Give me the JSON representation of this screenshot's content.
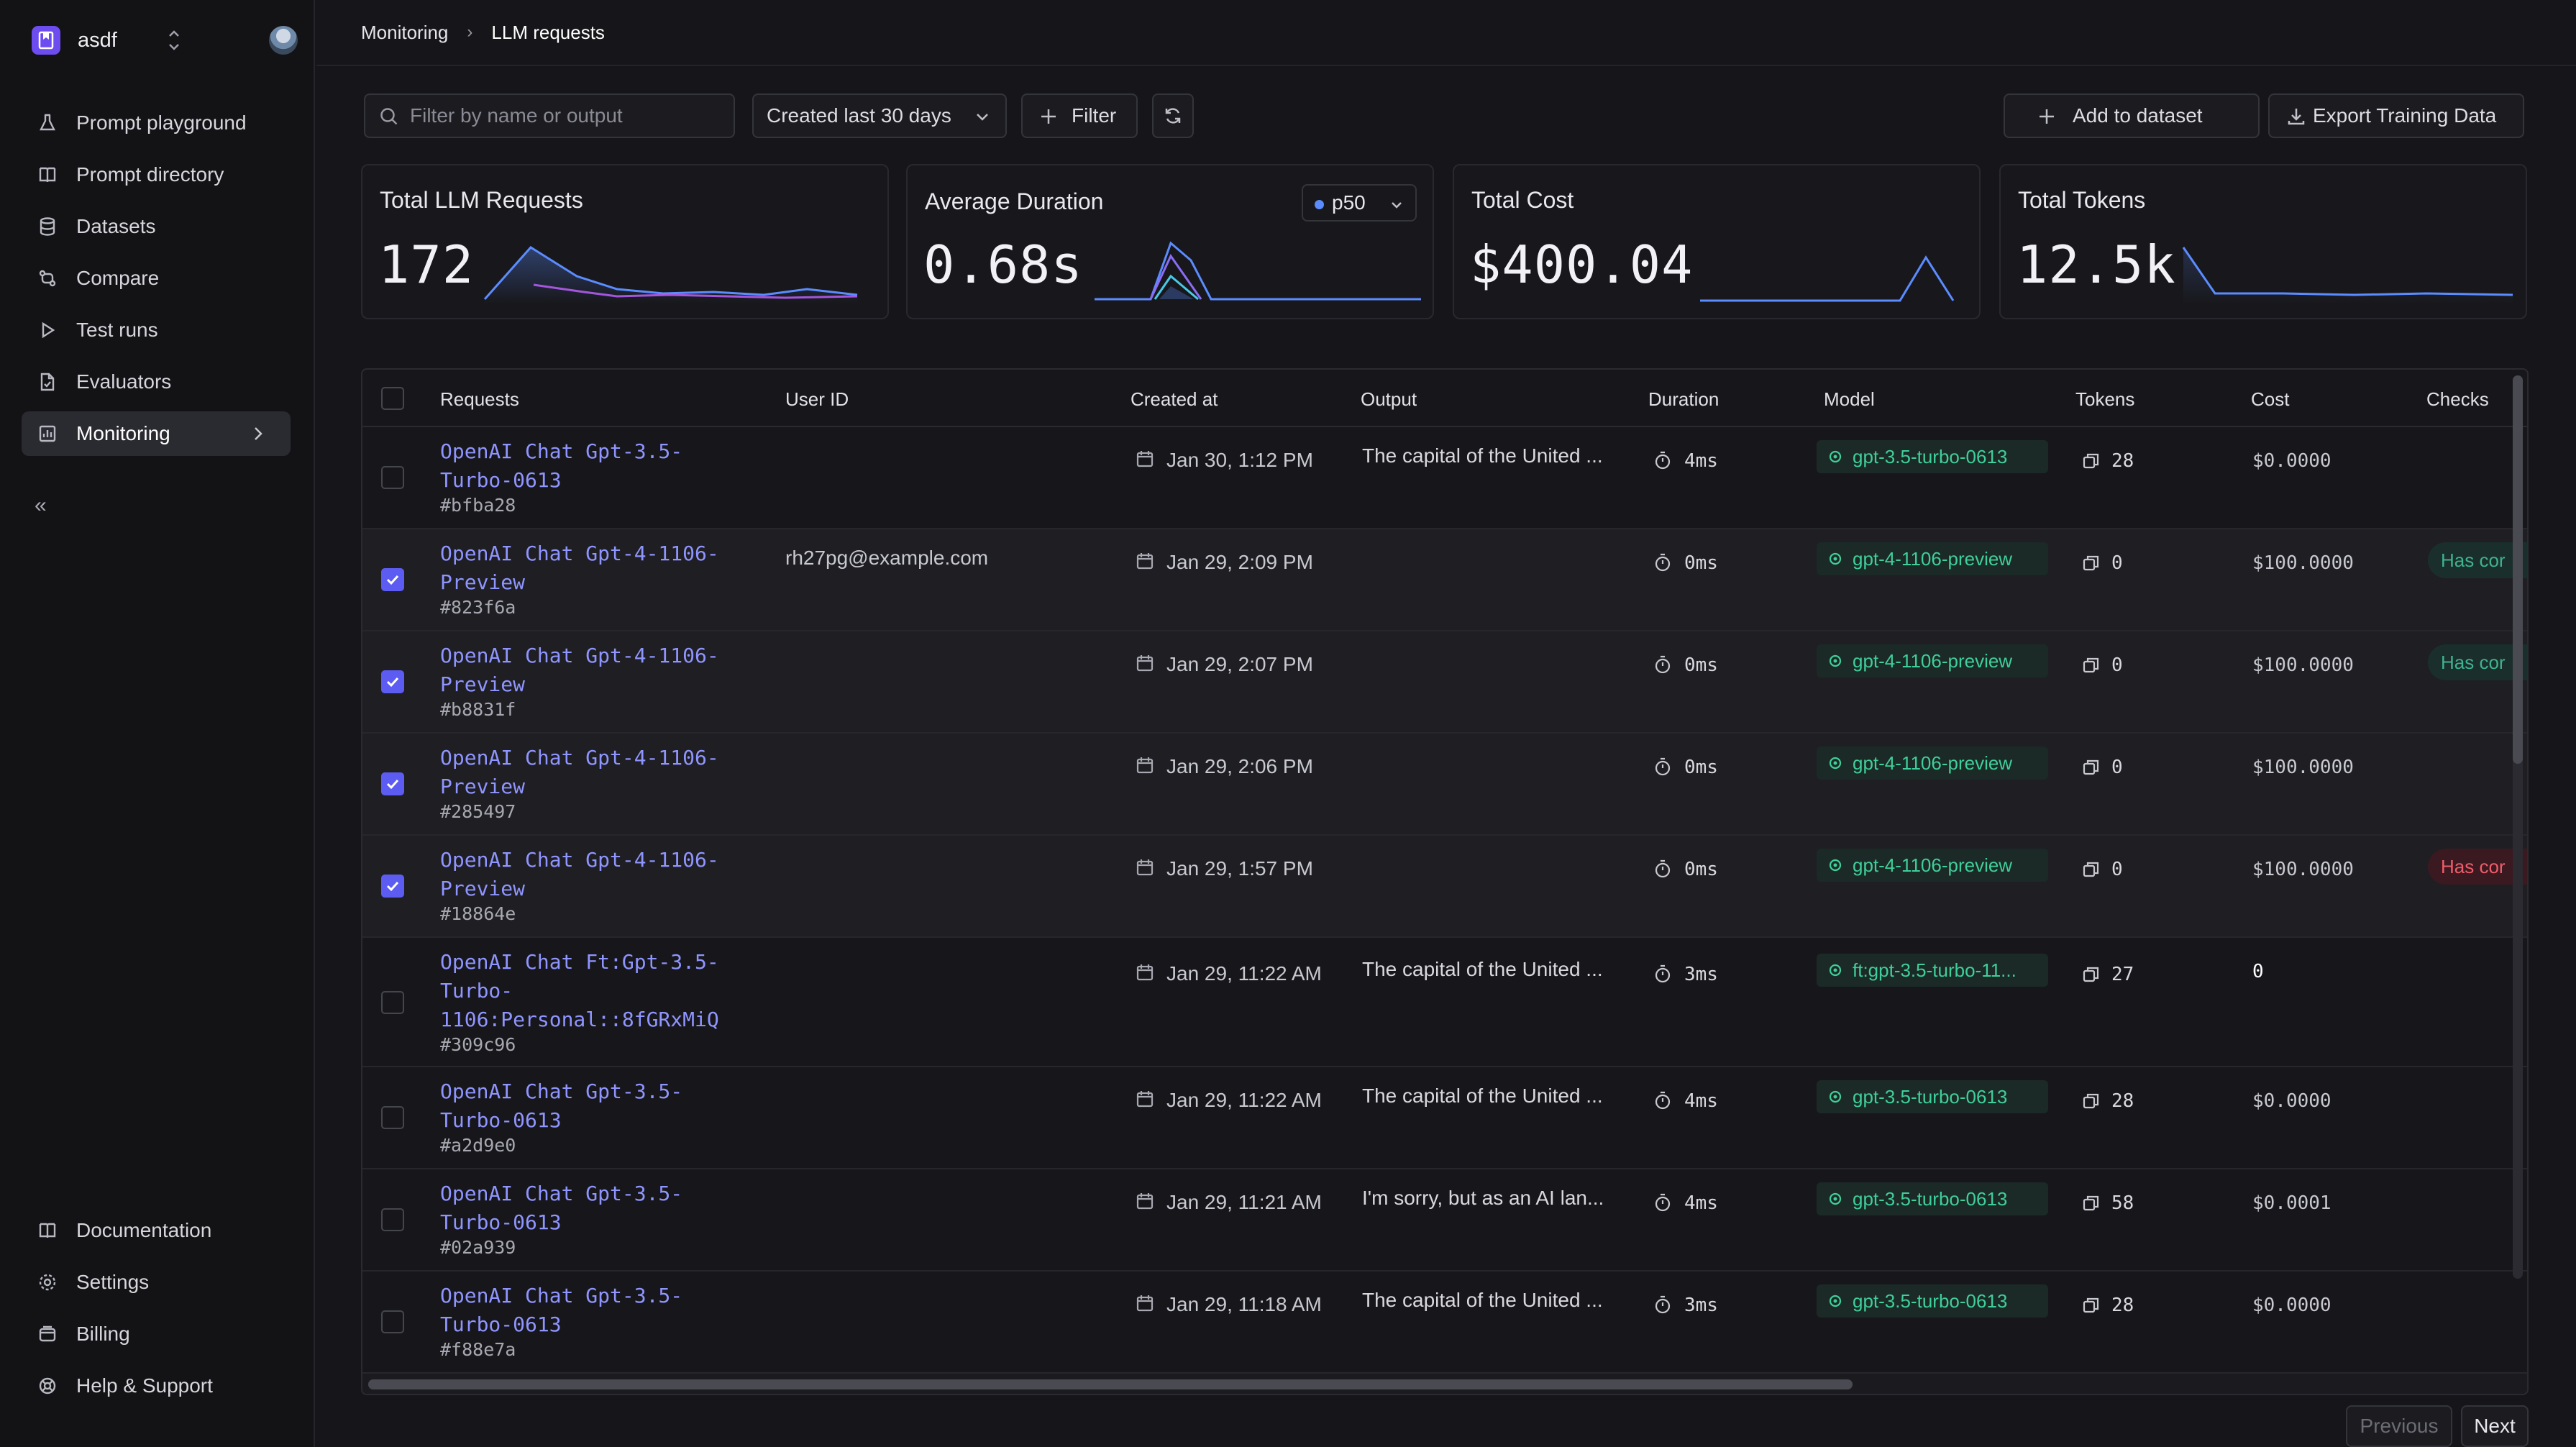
{
  "workspace": {
    "name": "asdf"
  },
  "nav": {
    "top": [
      {
        "label": "Prompt playground",
        "icon": "flask-icon"
      },
      {
        "label": "Prompt directory",
        "icon": "book-icon"
      },
      {
        "label": "Datasets",
        "icon": "database-icon"
      },
      {
        "label": "Compare",
        "icon": "compare-icon"
      },
      {
        "label": "Test runs",
        "icon": "play-icon"
      },
      {
        "label": "Evaluators",
        "icon": "file-check-icon"
      },
      {
        "label": "Monitoring",
        "icon": "chart-icon",
        "active": true
      }
    ],
    "bottom": [
      {
        "label": "Documentation",
        "icon": "book-icon"
      },
      {
        "label": "Settings",
        "icon": "gear-icon"
      },
      {
        "label": "Billing",
        "icon": "wallet-icon"
      },
      {
        "label": "Help & Support",
        "icon": "help-icon"
      }
    ]
  },
  "breadcrumb": {
    "parent": "Monitoring",
    "separator": "›",
    "current": "LLM requests"
  },
  "toolbar": {
    "search_placeholder": "Filter by name or output",
    "date_range": "Created last 30 days",
    "filter_label": "Filter",
    "add_to_dataset": "Add to dataset",
    "export": "Export Training Data"
  },
  "cards": [
    {
      "title": "Total LLM Requests",
      "value": "172"
    },
    {
      "title": "Average Duration",
      "value": "0.68s",
      "percentile": "p50"
    },
    {
      "title": "Total Cost",
      "value": "$400.04"
    },
    {
      "title": "Total Tokens",
      "value": "12.5k"
    }
  ],
  "table": {
    "columns": [
      "Requests",
      "User ID",
      "Created at",
      "Output",
      "Duration",
      "Model",
      "Tokens",
      "Cost",
      "Checks"
    ],
    "rows": [
      {
        "selected": false,
        "name": [
          "OpenAI Chat Gpt-3.5-",
          "Turbo-0613"
        ],
        "id": "#bfba28",
        "user": "",
        "created": "Jan 30, 1:12 PM",
        "output": "The capital of the United ...",
        "duration": "4ms",
        "model": "gpt-3.5-turbo-0613",
        "tokens": "28",
        "cost": "$0.0000",
        "check": "",
        "check_status": ""
      },
      {
        "selected": true,
        "name": [
          "OpenAI Chat Gpt-4-1106-",
          "Preview"
        ],
        "id": "#823f6a",
        "user": "rh27pg@example.com",
        "created": "Jan 29, 2:09 PM",
        "output": "",
        "duration": "0ms",
        "model": "gpt-4-1106-preview",
        "tokens": "0",
        "cost": "$100.0000",
        "check": "Has cor",
        "check_status": "ok"
      },
      {
        "selected": true,
        "name": [
          "OpenAI Chat Gpt-4-1106-",
          "Preview"
        ],
        "id": "#b8831f",
        "user": "",
        "created": "Jan 29, 2:07 PM",
        "output": "",
        "duration": "0ms",
        "model": "gpt-4-1106-preview",
        "tokens": "0",
        "cost": "$100.0000",
        "check": "Has cor",
        "check_status": "ok"
      },
      {
        "selected": true,
        "name": [
          "OpenAI Chat Gpt-4-1106-",
          "Preview"
        ],
        "id": "#285497",
        "user": "",
        "created": "Jan 29, 2:06 PM",
        "output": "",
        "duration": "0ms",
        "model": "gpt-4-1106-preview",
        "tokens": "0",
        "cost": "$100.0000",
        "check": "",
        "check_status": ""
      },
      {
        "selected": true,
        "name": [
          "OpenAI Chat Gpt-4-1106-",
          "Preview"
        ],
        "id": "#18864e",
        "user": "",
        "created": "Jan 29, 1:57 PM",
        "output": "",
        "duration": "0ms",
        "model": "gpt-4-1106-preview",
        "tokens": "0",
        "cost": "$100.0000",
        "check": "Has cor",
        "check_status": "bad"
      },
      {
        "selected": false,
        "name": [
          "OpenAI Chat Ft:Gpt-3.5-",
          "Turbo-",
          "1106:Personal::8fGRxMiQ"
        ],
        "id": "#309c96",
        "user": "",
        "created": "Jan 29, 11:22 AM",
        "output": "The capital of the United ...",
        "duration": "3ms",
        "model": "ft:gpt-3.5-turbo-11...",
        "tokens": "27",
        "cost": "0",
        "check": "",
        "check_status": ""
      },
      {
        "selected": false,
        "name": [
          "OpenAI Chat Gpt-3.5-",
          "Turbo-0613"
        ],
        "id": "#a2d9e0",
        "user": "",
        "created": "Jan 29, 11:22 AM",
        "output": "The capital of the United ...",
        "duration": "4ms",
        "model": "gpt-3.5-turbo-0613",
        "tokens": "28",
        "cost": "$0.0000",
        "check": "",
        "check_status": ""
      },
      {
        "selected": false,
        "name": [
          "OpenAI Chat Gpt-3.5-",
          "Turbo-0613"
        ],
        "id": "#02a939",
        "user": "",
        "created": "Jan 29, 11:21 AM",
        "output": "I'm sorry, but as an AI lan...",
        "duration": "4ms",
        "model": "gpt-3.5-turbo-0613",
        "tokens": "58",
        "cost": "$0.0001",
        "check": "",
        "check_status": ""
      },
      {
        "selected": false,
        "name": [
          "OpenAI Chat Gpt-3.5-",
          "Turbo-0613"
        ],
        "id": "#f88e7a",
        "user": "",
        "created": "Jan 29, 11:18 AM",
        "output": "The capital of the United ...",
        "duration": "3ms",
        "model": "gpt-3.5-turbo-0613",
        "tokens": "28",
        "cost": "$0.0000",
        "check": "",
        "check_status": ""
      }
    ]
  },
  "pagination": {
    "previous": "Previous",
    "next": "Next"
  },
  "colors": {
    "accent": "#5d5cf2",
    "link": "#8f95ff",
    "model": "#3fcf9a",
    "ok": "#3fb28e",
    "bad": "#ef5d6a"
  }
}
